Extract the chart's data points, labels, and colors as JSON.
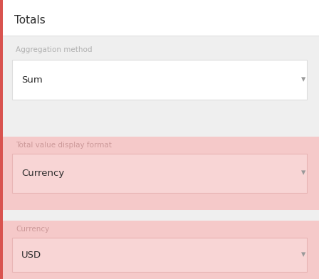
{
  "fig_w": 4.48,
  "fig_h": 3.92,
  "dpi": 100,
  "bg_color": "#efefef",
  "white_bg": "#ffffff",
  "pink_bg": "#f5c9c9",
  "pink_dropdown_bg": "#f8d5d5",
  "title": "Totals",
  "title_color": "#2c2c2c",
  "title_fontsize": 11,
  "header_bg": "#ffffff",
  "section1_label": "Aggregation method",
  "section1_label_color": "#b0b0b0",
  "section1_value": "Sum",
  "section1_value_color": "#2c2c2c",
  "section2_label": "Total value display format",
  "section2_label_color": "#cc9999",
  "section2_value": "Currency",
  "section2_value_color": "#2c2c2c",
  "section3_label": "Currency",
  "section3_label_color": "#cc9999",
  "section3_value": "USD",
  "section3_value_color": "#2c2c2c",
  "arrow_color": "#999999",
  "left_bar_color": "#d9534f",
  "border_color": "#dddddd",
  "pink_border": "#e8b4b4",
  "label_fontsize": 7.5,
  "value_fontsize": 9.5
}
